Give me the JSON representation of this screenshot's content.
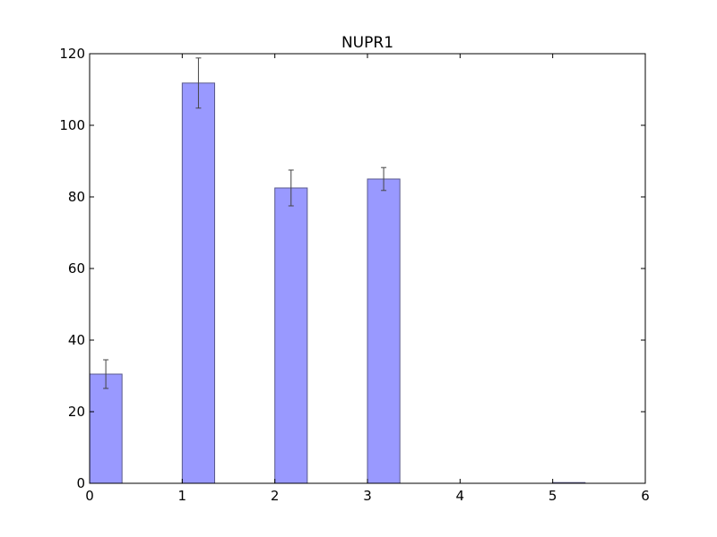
{
  "chart_data": {
    "type": "bar",
    "title": "NUPR1",
    "xlabel": "",
    "ylabel": "",
    "xlim": [
      0,
      6
    ],
    "ylim": [
      0,
      120
    ],
    "xticks": [
      "0",
      "1",
      "2",
      "3",
      "4",
      "5",
      "6"
    ],
    "yticks": [
      "0",
      "20",
      "40",
      "60",
      "80",
      "100",
      "120"
    ],
    "bar_width": 0.35,
    "bars": [
      {
        "x": 0,
        "value": 30.5,
        "error": 4.0
      },
      {
        "x": 1,
        "value": 111.8,
        "error": 7.0
      },
      {
        "x": 2,
        "value": 82.5,
        "error": 5.0
      },
      {
        "x": 3,
        "value": 85.0,
        "error": 3.2
      },
      {
        "x": 4,
        "value": 0,
        "error": 0
      },
      {
        "x": 5,
        "value": 0.2,
        "error": 0
      }
    ],
    "colors": {
      "bar_fill": "#9999ff",
      "bar_edge": "#5a5a8c",
      "errorbar": "#444444",
      "axes": "#000000"
    },
    "grid": false
  }
}
